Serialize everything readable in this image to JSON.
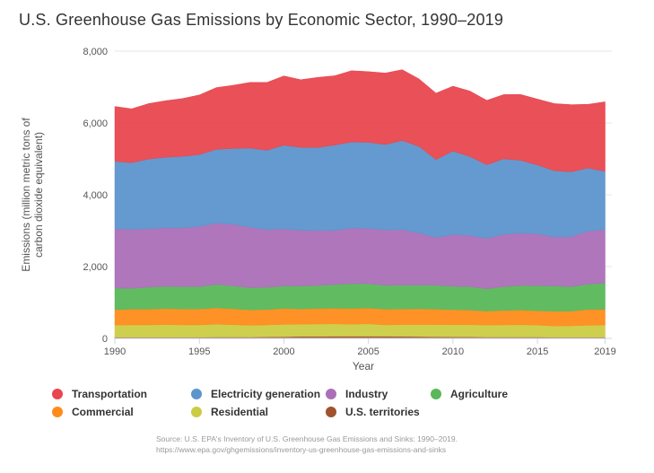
{
  "title": "U.S. Greenhouse Gas Emissions by Economic Sector, 1990–2019",
  "source": {
    "line1": "Source: U.S. EPA's Inventory of U.S. Greenhouse Gas Emissions and Sinks: 1990–2019.",
    "line2": "https://www.epa.gov/ghgemissions/inventory-us-greenhouse-gas-emissions-and-sinks"
  },
  "chart_data": {
    "type": "area",
    "stacked": true,
    "title": "U.S. Greenhouse Gas Emissions by Economic Sector, 1990–2019",
    "xlabel": "Year",
    "ylabel_lines": [
      "Emissions (million metric tons of",
      "carbon dioxide equivalent)"
    ],
    "xlim": [
      1990,
      2019.4
    ],
    "ylim": [
      0,
      8000
    ],
    "x_ticks": [
      1990,
      1995,
      2000,
      2005,
      2010,
      2015,
      2019
    ],
    "x_tick_labels": [
      "1990",
      "1995",
      "2000",
      "2005",
      "2010",
      "2015",
      "2019"
    ],
    "y_ticks": [
      0,
      2000,
      4000,
      6000,
      8000
    ],
    "y_tick_labels": [
      "0",
      "2,000",
      "4,000",
      "6,000",
      "8,000"
    ],
    "grid": "horizontal",
    "legend_position": "bottom",
    "x": [
      1990,
      1991,
      1992,
      1993,
      1994,
      1995,
      1996,
      1997,
      1998,
      1999,
      2000,
      2001,
      2002,
      2003,
      2004,
      2005,
      2006,
      2007,
      2008,
      2009,
      2010,
      2011,
      2012,
      2013,
      2014,
      2015,
      2016,
      2017,
      2018,
      2019
    ],
    "series": [
      {
        "name": "U.S. territories",
        "color": "#a0522d",
        "values": [
          30,
          30,
          30,
          30,
          30,
          30,
          35,
          35,
          35,
          40,
          45,
          55,
          55,
          60,
          60,
          60,
          60,
          55,
          50,
          45,
          40,
          40,
          35,
          35,
          35,
          35,
          30,
          30,
          30,
          30
        ]
      },
      {
        "name": "Residential",
        "color": "#cccc44",
        "values": [
          340,
          345,
          345,
          355,
          345,
          345,
          360,
          345,
          330,
          335,
          345,
          340,
          345,
          345,
          335,
          345,
          315,
          330,
          335,
          340,
          340,
          340,
          335,
          340,
          345,
          335,
          315,
          320,
          335,
          340
        ]
      },
      {
        "name": "Commercial",
        "color": "#ff8c1a",
        "values": [
          430,
          440,
          440,
          445,
          445,
          445,
          455,
          445,
          430,
          430,
          445,
          425,
          435,
          435,
          440,
          440,
          440,
          435,
          440,
          430,
          420,
          410,
          390,
          405,
          410,
          400,
          410,
          410,
          440,
          440
        ]
      },
      {
        "name": "Agriculture",
        "color": "#59b859",
        "values": [
          600,
          580,
          610,
          620,
          620,
          620,
          650,
          635,
          615,
          615,
          625,
          640,
          635,
          660,
          685,
          680,
          660,
          665,
          655,
          665,
          650,
          650,
          620,
          660,
          680,
          695,
          705,
          680,
          705,
          730
        ]
      },
      {
        "name": "Industry",
        "color": "#ab6fb8",
        "values": [
          1650,
          1640,
          1630,
          1630,
          1640,
          1680,
          1710,
          1720,
          1685,
          1610,
          1590,
          1555,
          1535,
          1510,
          1555,
          1535,
          1545,
          1540,
          1455,
          1330,
          1445,
          1425,
          1405,
          1460,
          1460,
          1450,
          1365,
          1395,
          1480,
          1490
        ]
      },
      {
        "name": "Electricity generation",
        "color": "#5c95cc",
        "values": [
          1880,
          1860,
          1940,
          1965,
          1990,
          2000,
          2055,
          2110,
          2205,
          2210,
          2330,
          2305,
          2310,
          2375,
          2395,
          2400,
          2380,
          2485,
          2410,
          2170,
          2320,
          2200,
          2050,
          2100,
          2030,
          1915,
          1845,
          1805,
          1755,
          1620
        ]
      },
      {
        "name": "Transportation",
        "color": "#e8474f",
        "values": [
          1530,
          1500,
          1545,
          1575,
          1610,
          1660,
          1720,
          1760,
          1830,
          1890,
          1930,
          1885,
          1955,
          1930,
          1985,
          1970,
          1990,
          1975,
          1880,
          1850,
          1810,
          1825,
          1795,
          1790,
          1835,
          1835,
          1870,
          1870,
          1775,
          1940
        ]
      }
    ]
  },
  "legend_items": [
    {
      "name": "Transportation",
      "color": "#e8474f"
    },
    {
      "name": "Electricity generation",
      "color": "#5c95cc"
    },
    {
      "name": "Industry",
      "color": "#ab6fb8"
    },
    {
      "name": "Agriculture",
      "color": "#59b859"
    },
    {
      "name": "Commercial",
      "color": "#ff8c1a"
    },
    {
      "name": "Residential",
      "color": "#cccc44"
    },
    {
      "name": "U.S. territories",
      "color": "#a0522d"
    }
  ]
}
